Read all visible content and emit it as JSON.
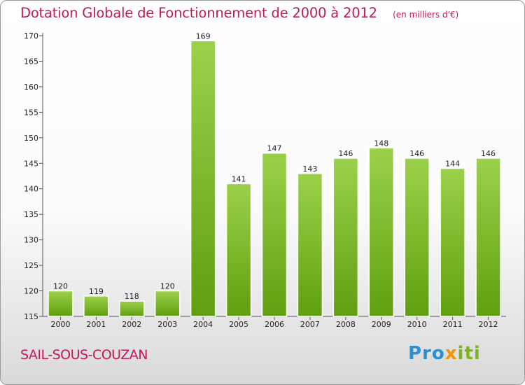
{
  "title": "Dotation Globale de Fonctionnement de 2000 à 2012",
  "unit_note": "(en milliers d'€)",
  "commune": "SAIL-SOUS-COUZAN",
  "logo": {
    "part1": "Pro",
    "part2": "x",
    "part3": "iti"
  },
  "colors": {
    "title": "#c2185b",
    "bar_light": "#9bd14a",
    "bar_dark": "#5f9f10",
    "logo_blue": "#2a8fd6",
    "logo_orange": "#f29400",
    "logo_green": "#7ab51d"
  },
  "chart_data": {
    "type": "bar",
    "title": "Dotation Globale de Fonctionnement de 2000 à 2012",
    "categories": [
      "2000",
      "2001",
      "2002",
      "2003",
      "2004",
      "2005",
      "2006",
      "2007",
      "2008",
      "2009",
      "2010",
      "2011",
      "2012"
    ],
    "values": [
      120,
      119,
      118,
      120,
      169,
      141,
      147,
      143,
      146,
      148,
      146,
      144,
      146
    ],
    "ylim": [
      115,
      170
    ],
    "yticks": [
      115,
      120,
      125,
      130,
      135,
      140,
      145,
      150,
      155,
      160,
      165,
      170
    ],
    "xlabel": "",
    "ylabel": "",
    "grid": false,
    "data_labels": true
  }
}
